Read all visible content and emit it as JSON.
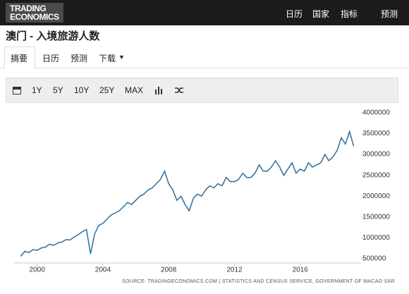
{
  "header": {
    "logo": [
      "TRADING",
      "ECONOMICS"
    ],
    "nav": [
      "日历",
      "国家",
      "指标",
      "预测"
    ]
  },
  "title": "澳门 - 入境旅游人数",
  "tabs": [
    "摘要",
    "日历",
    "预测",
    "下载"
  ],
  "toolbar": [
    "1Y",
    "5Y",
    "10Y",
    "25Y",
    "MAX"
  ],
  "source": "SOURCE: TRADINGECONOMICS.COM | STATISTICS AND CENSUS SERVICE, GOVERNMENT OF MACAO SAR",
  "chart_data": {
    "type": "line",
    "color": "#2f6e99",
    "x": [
      1999,
      1999.25,
      1999.5,
      1999.75,
      2000,
      2000.25,
      2000.5,
      2000.75,
      2001,
      2001.25,
      2001.5,
      2001.75,
      2002,
      2002.25,
      2002.5,
      2002.75,
      2003,
      2003.25,
      2003.5,
      2003.75,
      2004,
      2004.25,
      2004.5,
      2004.75,
      2005,
      2005.25,
      2005.5,
      2005.75,
      2006,
      2006.25,
      2006.5,
      2006.75,
      2007,
      2007.25,
      2007.5,
      2007.75,
      2008,
      2008.25,
      2008.5,
      2008.75,
      2009,
      2009.25,
      2009.5,
      2009.75,
      2010,
      2010.25,
      2010.5,
      2010.75,
      2011,
      2011.25,
      2011.5,
      2011.75,
      2012,
      2012.25,
      2012.5,
      2012.75,
      2013,
      2013.25,
      2013.5,
      2013.75,
      2014,
      2014.25,
      2014.5,
      2014.75,
      2015,
      2015.25,
      2015.5,
      2015.75,
      2016,
      2016.25,
      2016.5,
      2016.75,
      2017,
      2017.25,
      2017.5,
      2017.75,
      2018,
      2018.25,
      2018.5,
      2018.75,
      2019,
      2019.25
    ],
    "values": [
      560000,
      680000,
      650000,
      720000,
      700000,
      760000,
      780000,
      850000,
      820000,
      880000,
      900000,
      960000,
      950000,
      1020000,
      1080000,
      1150000,
      1200000,
      620000,
      1100000,
      1300000,
      1350000,
      1450000,
      1550000,
      1600000,
      1650000,
      1750000,
      1850000,
      1800000,
      1900000,
      2000000,
      2050000,
      2150000,
      2200000,
      2300000,
      2400000,
      2600000,
      2300000,
      2150000,
      1900000,
      2000000,
      1800000,
      1650000,
      1950000,
      2050000,
      2000000,
      2150000,
      2250000,
      2200000,
      2300000,
      2250000,
      2450000,
      2350000,
      2350000,
      2400000,
      2550000,
      2450000,
      2450000,
      2550000,
      2750000,
      2600000,
      2600000,
      2700000,
      2850000,
      2700000,
      2500000,
      2650000,
      2800000,
      2550000,
      2650000,
      2600000,
      2800000,
      2700000,
      2750000,
      2800000,
      3000000,
      2850000,
      2950000,
      3100000,
      3400000,
      3250000,
      3550000,
      3200000
    ],
    "xlim": [
      1998.6,
      2019.7
    ],
    "xticks": [
      2000,
      2004,
      2008,
      2012,
      2016
    ],
    "ylim": [
      400000,
      4100000
    ],
    "yticks": [
      500000,
      1000000,
      1500000,
      2000000,
      2500000,
      3000000,
      3500000,
      4000000
    ]
  }
}
